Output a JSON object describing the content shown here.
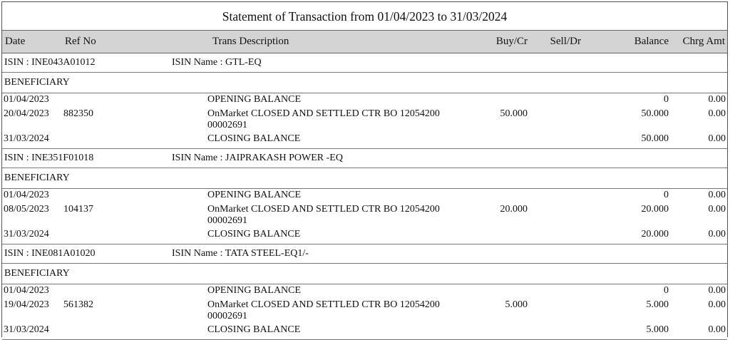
{
  "title": "Statement of Transaction from 01/04/2023 to 31/03/2024",
  "columns": {
    "date": "Date",
    "ref": "Ref No",
    "desc": "Trans Description",
    "buy": "Buy/Cr",
    "sell": "Sell/Dr",
    "balance": "Balance",
    "chrg": "Chrg Amt"
  },
  "sections": [
    {
      "isin": "ISIN : INE043A01012",
      "isin_name": "ISIN Name : GTL-EQ",
      "type": "BENEFICIARY",
      "rows": [
        {
          "date": "01/04/2023",
          "ref": "",
          "desc": "OPENING BALANCE",
          "desc2": "",
          "buy": "",
          "sell": "",
          "balance": "0",
          "chrg": "0.00"
        },
        {
          "date": "20/04/2023",
          "ref": "882350",
          "desc": "OnMarket CLOSED AND SETTLED  CTR BO 12054200",
          "desc2": "00002691",
          "buy": "50.000",
          "sell": "",
          "balance": "50.000",
          "chrg": "0.00"
        },
        {
          "date": "31/03/2024",
          "ref": "",
          "desc": "CLOSING BALANCE",
          "desc2": "",
          "buy": "",
          "sell": "",
          "balance": "50.000",
          "chrg": "0.00"
        }
      ]
    },
    {
      "isin": "ISIN : INE351F01018",
      "isin_name": "ISIN Name : JAIPRAKASH POWER -EQ",
      "type": "BENEFICIARY",
      "rows": [
        {
          "date": "01/04/2023",
          "ref": "",
          "desc": "OPENING BALANCE",
          "desc2": "",
          "buy": "",
          "sell": "",
          "balance": "0",
          "chrg": "0.00"
        },
        {
          "date": "08/05/2023",
          "ref": "104137",
          "desc": "OnMarket CLOSED AND SETTLED  CTR BO 12054200",
          "desc2": "00002691",
          "buy": "20.000",
          "sell": "",
          "balance": "20.000",
          "chrg": "0.00"
        },
        {
          "date": "31/03/2024",
          "ref": "",
          "desc": "CLOSING BALANCE",
          "desc2": "",
          "buy": "",
          "sell": "",
          "balance": "20.000",
          "chrg": "0.00"
        }
      ]
    },
    {
      "isin": "ISIN : INE081A01020",
      "isin_name": "ISIN Name : TATA STEEL-EQ1/-",
      "type": "BENEFICIARY",
      "rows": [
        {
          "date": "01/04/2023",
          "ref": "",
          "desc": "OPENING BALANCE",
          "desc2": "",
          "buy": "",
          "sell": "",
          "balance": "0",
          "chrg": "0.00"
        },
        {
          "date": "19/04/2023",
          "ref": "561382",
          "desc": "OnMarket CLOSED AND SETTLED  CTR BO 12054200",
          "desc2": "00002691",
          "buy": "5.000",
          "sell": "",
          "balance": "5.000",
          "chrg": "0.00"
        },
        {
          "date": "31/03/2024",
          "ref": "",
          "desc": "CLOSING BALANCE",
          "desc2": "",
          "buy": "",
          "sell": "",
          "balance": "5.000",
          "chrg": "0.00"
        }
      ]
    }
  ]
}
